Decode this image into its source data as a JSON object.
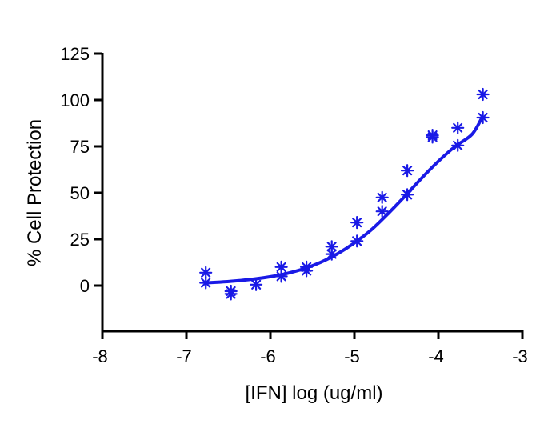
{
  "chart_data": {
    "type": "scatter",
    "title": "",
    "xlabel": "[IFN] log (ug/ml)",
    "ylabel": "% Cell Protection",
    "xlim": [
      -8,
      -3
    ],
    "ylim": [
      -25,
      125
    ],
    "x_ticks": [
      -8,
      -7,
      -6,
      -5,
      -4,
      -3
    ],
    "x_tick_labels": [
      "-8",
      "-7",
      "-6",
      "-5",
      "-4",
      "-3"
    ],
    "y_ticks": [
      0,
      25,
      50,
      75,
      100,
      125
    ],
    "y_tick_labels": [
      "0",
      "25",
      "50",
      "75",
      "100",
      "125"
    ],
    "grid": false,
    "color": "#1a1ae6",
    "series": [
      {
        "type": "scatter",
        "marker": "asterisk",
        "points": [
          [
            -6.77,
            7
          ],
          [
            -6.77,
            1.5
          ],
          [
            -6.47,
            -3
          ],
          [
            -6.47,
            -4.5
          ],
          [
            -6.17,
            0.5
          ],
          [
            -5.87,
            10
          ],
          [
            -5.87,
            5
          ],
          [
            -5.57,
            10
          ],
          [
            -5.57,
            8
          ],
          [
            -5.27,
            21
          ],
          [
            -5.27,
            17
          ],
          [
            -4.97,
            34
          ],
          [
            -4.97,
            24
          ],
          [
            -4.67,
            47.5
          ],
          [
            -4.67,
            40
          ],
          [
            -4.37,
            62
          ],
          [
            -4.37,
            49
          ],
          [
            -4.07,
            81
          ],
          [
            -4.07,
            80
          ],
          [
            -3.77,
            85
          ],
          [
            -3.77,
            75.5
          ],
          [
            -3.47,
            103
          ],
          [
            -3.47,
            90.5
          ]
        ]
      },
      {
        "type": "line",
        "fit": "sigmoid",
        "points": [
          [
            -6.77,
            1.5
          ],
          [
            -6.6,
            1.9
          ],
          [
            -6.4,
            2.6
          ],
          [
            -6.2,
            3.5
          ],
          [
            -6.0,
            4.8
          ],
          [
            -5.8,
            6.6
          ],
          [
            -5.6,
            9.1
          ],
          [
            -5.4,
            12.6
          ],
          [
            -5.2,
            17.2
          ],
          [
            -5.0,
            23.0
          ],
          [
            -4.8,
            30.0
          ],
          [
            -4.6,
            38.7
          ],
          [
            -4.4,
            48.1
          ],
          [
            -4.2,
            57.9
          ],
          [
            -4.0,
            67.0
          ],
          [
            -3.8,
            75.0
          ],
          [
            -3.6,
            81.5
          ],
          [
            -3.47,
            91.5
          ]
        ]
      }
    ]
  }
}
